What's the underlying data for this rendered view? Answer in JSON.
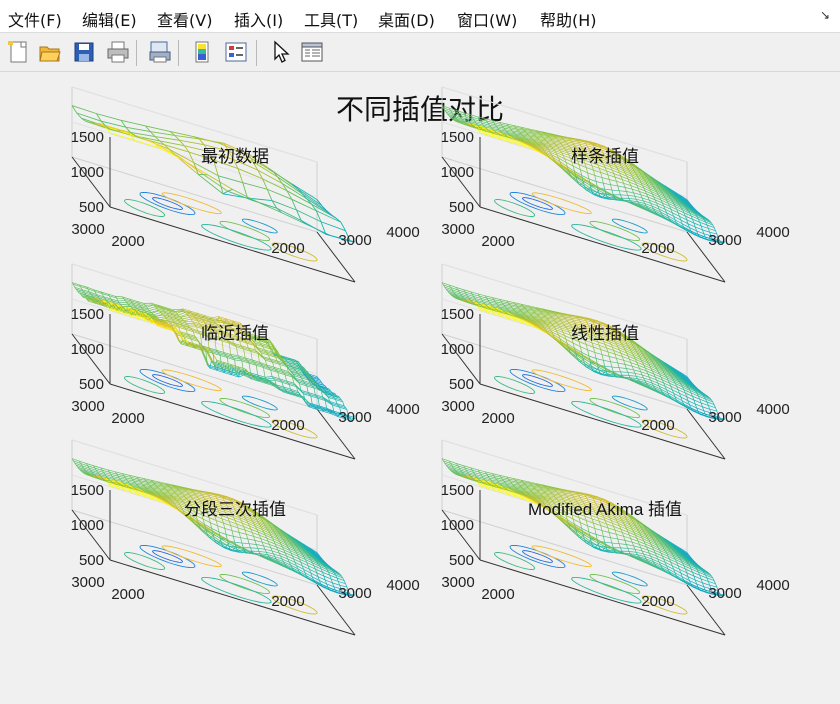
{
  "menubar": {
    "items": [
      {
        "name": "menu-file",
        "label": "文件(F)"
      },
      {
        "name": "menu-edit",
        "label": "编辑(E)"
      },
      {
        "name": "menu-view",
        "label": "查看(V)"
      },
      {
        "name": "menu-insert",
        "label": "插入(I)"
      },
      {
        "name": "menu-tools",
        "label": "工具(T)"
      },
      {
        "name": "menu-desktop",
        "label": "桌面(D)"
      },
      {
        "name": "menu-window",
        "label": "窗口(W)"
      },
      {
        "name": "menu-help",
        "label": "帮助(H)"
      }
    ],
    "collapse_icon": "undock-arrow-icon"
  },
  "toolbar": {
    "buttons": [
      "new-figure-icon",
      "open-file-icon",
      "save-icon",
      "print-icon",
      "print-preview-icon",
      "colorbar-icon",
      "legend-icon",
      "edit-plot-arrow-icon",
      "property-inspector-icon"
    ]
  },
  "colors": {
    "low": "#3e26a8",
    "mid": "#12b3b8",
    "high": "#f9fb0e"
  },
  "figure": {
    "title": "不同插值对比",
    "chart_data": [
      {
        "type": "surface-mesh",
        "title": "最初数据",
        "grid": [
          8,
          10
        ],
        "smooth": false,
        "x_ticks": [
          "2000",
          "3000",
          "4000"
        ],
        "y_ticks": [
          "2000",
          "3000"
        ],
        "z_ticks": [
          "500",
          "1000",
          "1500"
        ],
        "zlim": [
          500,
          1500
        ],
        "contour_projection": true
      },
      {
        "type": "surface-mesh",
        "title": "样条插值",
        "grid": [
          28,
          34
        ],
        "smooth": true,
        "x_ticks": [
          "2000",
          "3000",
          "4000"
        ],
        "y_ticks": [
          "2000",
          "3000"
        ],
        "z_ticks": [
          "500",
          "1000",
          "1500"
        ],
        "zlim": [
          500,
          1500
        ],
        "contour_projection": true
      },
      {
        "type": "surface-mesh",
        "title": "临近插值",
        "grid": [
          28,
          34
        ],
        "smooth": false,
        "stepped": true,
        "x_ticks": [
          "2000",
          "3000",
          "4000"
        ],
        "y_ticks": [
          "2000",
          "3000"
        ],
        "z_ticks": [
          "500",
          "1000",
          "1500"
        ],
        "zlim": [
          500,
          1500
        ],
        "contour_projection": true
      },
      {
        "type": "surface-mesh",
        "title": "线性插值",
        "grid": [
          28,
          34
        ],
        "smooth": true,
        "x_ticks": [
          "2000",
          "3000",
          "4000"
        ],
        "y_ticks": [
          "2000",
          "3000"
        ],
        "z_ticks": [
          "500",
          "1000",
          "1500"
        ],
        "zlim": [
          500,
          1500
        ],
        "contour_projection": true
      },
      {
        "type": "surface-mesh",
        "title": "分段三次插值",
        "grid": [
          28,
          34
        ],
        "smooth": true,
        "x_ticks": [
          "2000",
          "3000",
          "4000"
        ],
        "y_ticks": [
          "2000",
          "3000"
        ],
        "z_ticks": [
          "500",
          "1000",
          "1500"
        ],
        "zlim": [
          500,
          1500
        ],
        "contour_projection": true
      },
      {
        "type": "surface-mesh",
        "title": "Modified Akima 插值",
        "grid": [
          28,
          34
        ],
        "smooth": true,
        "x_ticks": [
          "2000",
          "3000",
          "4000"
        ],
        "y_ticks": [
          "2000",
          "3000"
        ],
        "z_ticks": [
          "500",
          "1000",
          "1500"
        ],
        "zlim": [
          500,
          1500
        ],
        "contour_projection": true
      }
    ]
  }
}
